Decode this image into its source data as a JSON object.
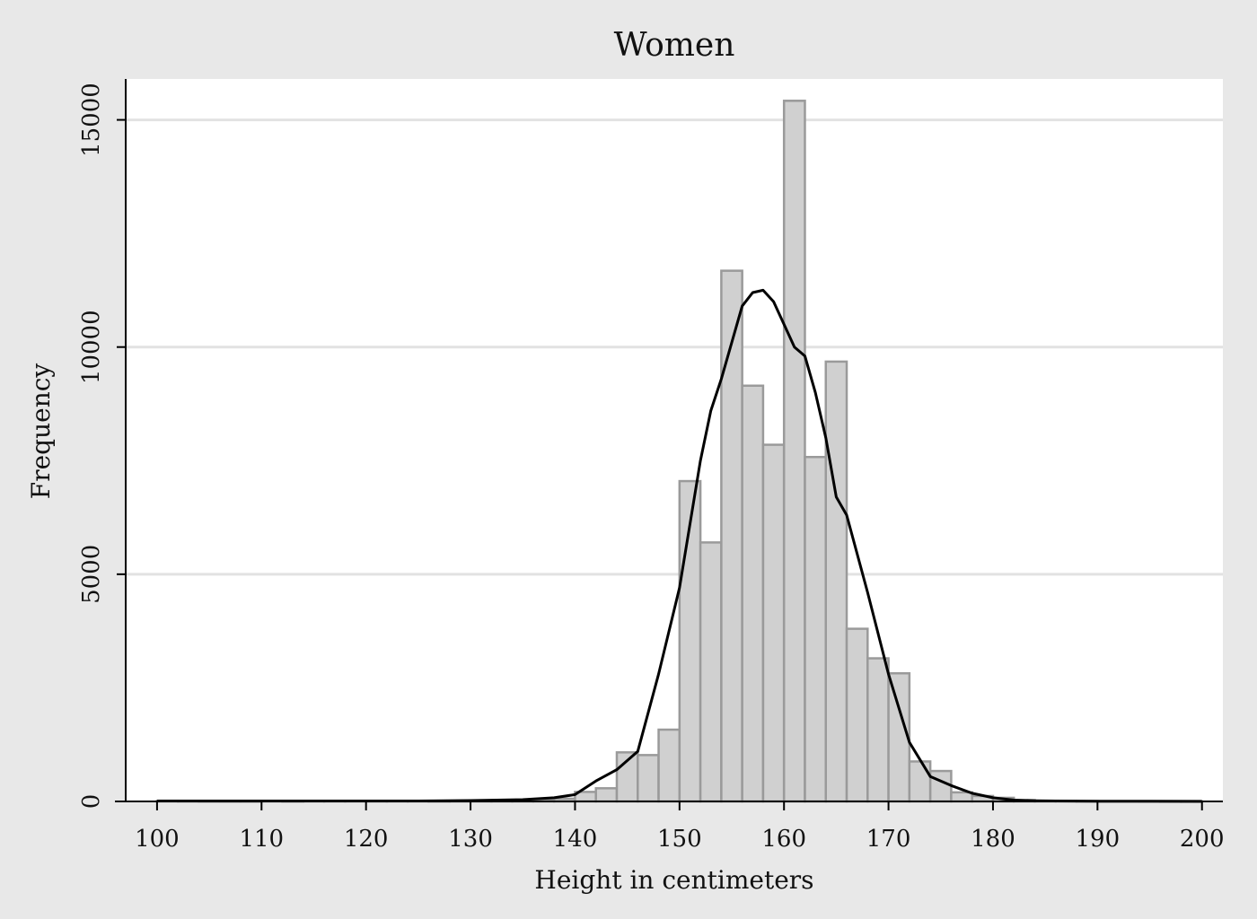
{
  "chart_data": {
    "type": "bar",
    "title": "Women",
    "xlabel": "Height in centimeters",
    "ylabel": "Frequency",
    "xlim": [
      97,
      202
    ],
    "ylim": [
      0,
      15900
    ],
    "x_ticks": [
      100,
      110,
      120,
      130,
      140,
      150,
      160,
      170,
      180,
      190,
      200
    ],
    "y_ticks": [
      0,
      5000,
      10000,
      15000
    ],
    "grid": true,
    "legend": "none",
    "bar_color": "#d0d0d0",
    "bar_edge_color": "#9a9a9a",
    "line_color": "#000000",
    "background_color": "#e8e8e8",
    "plot_background_color": "#ffffff",
    "series": [
      {
        "type": "histogram",
        "bin_width": 2,
        "bin_starts": [
          100,
          102,
          104,
          106,
          108,
          110,
          112,
          114,
          116,
          118,
          120,
          122,
          124,
          126,
          128,
          130,
          132,
          134,
          136,
          138,
          140,
          142,
          144,
          146,
          148,
          150,
          152,
          154,
          156,
          158,
          160,
          162,
          164,
          166,
          168,
          170,
          172,
          174,
          176,
          178,
          180,
          182,
          184,
          186,
          188,
          190,
          192,
          194,
          196,
          198
        ],
        "values": [
          15,
          8,
          5,
          4,
          4,
          12,
          6,
          14,
          12,
          10,
          9,
          11,
          10,
          7,
          9,
          14,
          20,
          25,
          35,
          60,
          210,
          290,
          1080,
          1020,
          1580,
          7050,
          5700,
          11680,
          9150,
          7850,
          15420,
          7580,
          9680,
          3800,
          3150,
          2820,
          880,
          670,
          200,
          120,
          80,
          30,
          15,
          10,
          8,
          5,
          5,
          4,
          3,
          2
        ]
      },
      {
        "type": "line",
        "x": [
          100,
          110,
          120,
          125,
          130,
          135,
          138,
          140,
          142,
          144,
          146,
          148,
          150,
          152,
          153,
          154,
          156,
          157,
          158,
          159,
          160,
          161,
          162,
          163,
          164,
          165,
          166,
          168,
          170,
          172,
          174,
          176,
          178,
          180,
          182,
          184,
          186,
          190,
          195,
          200
        ],
        "y": [
          10,
          10,
          10,
          10,
          20,
          40,
          80,
          150,
          450,
          700,
          1100,
          2800,
          4700,
          7500,
          8600,
          9300,
          10900,
          11200,
          11250,
          11000,
          10500,
          10000,
          9800,
          9000,
          8000,
          6700,
          6300,
          4600,
          2800,
          1300,
          550,
          350,
          180,
          80,
          30,
          15,
          10,
          5,
          3,
          2
        ]
      }
    ]
  }
}
